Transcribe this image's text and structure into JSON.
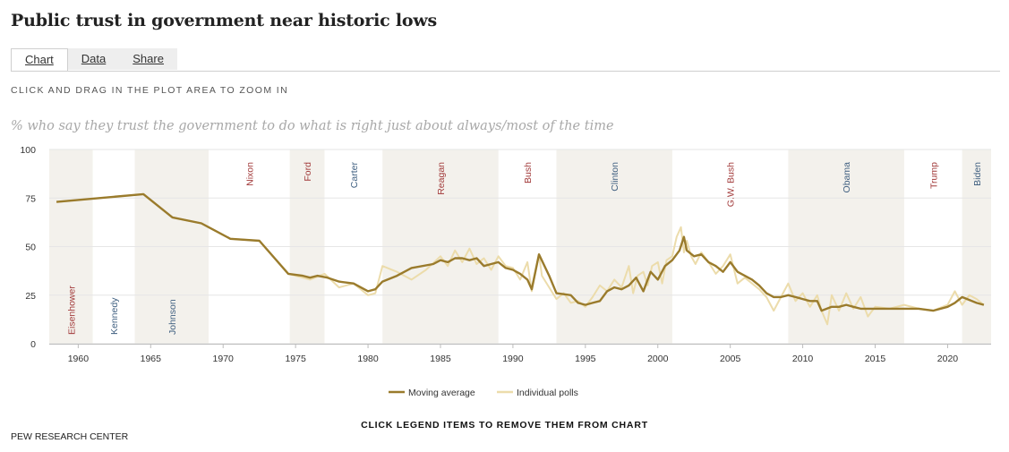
{
  "title": "Public trust in government near historic lows",
  "tabs": [
    "Chart",
    "Data",
    "Share"
  ],
  "zoom_hint": "CLICK AND DRAG IN THE PLOT AREA TO ZOOM IN",
  "legend_hint": "CLICK LEGEND ITEMS TO REMOVE THEM FROM CHART",
  "source": "PEW RESEARCH CENTER",
  "colors": {
    "moving_average": "#9a7b2c",
    "individual_polls": "#ecdcab",
    "republican": "#a23b3b",
    "democrat": "#3f5f80",
    "shade": "#f3f1ec"
  },
  "chart_data": {
    "type": "line",
    "title": "% who say they trust the government to do what is right just about always/most of the time",
    "xlabel": "",
    "ylabel": "",
    "xlim": [
      1958,
      2023
    ],
    "ylim": [
      0,
      100
    ],
    "yticks": [
      0,
      25,
      50,
      75,
      100
    ],
    "xticks": [
      1960,
      1965,
      1970,
      1975,
      1980,
      1985,
      1990,
      1995,
      2000,
      2005,
      2010,
      2015,
      2020
    ],
    "presidents": [
      {
        "name": "Eisenhower",
        "start": 1958,
        "end": 1961,
        "party": "R",
        "label_pos": "bottom"
      },
      {
        "name": "Kennedy",
        "start": 1961,
        "end": 1963.9,
        "party": "D",
        "label_pos": "bottom"
      },
      {
        "name": "Johnson",
        "start": 1963.9,
        "end": 1969,
        "party": "D",
        "label_pos": "bottom"
      },
      {
        "name": "Nixon",
        "start": 1969,
        "end": 1974.6,
        "party": "R",
        "label_pos": "top"
      },
      {
        "name": "Ford",
        "start": 1974.6,
        "end": 1977,
        "party": "R",
        "label_pos": "top"
      },
      {
        "name": "Carter",
        "start": 1977,
        "end": 1981,
        "party": "D",
        "label_pos": "top"
      },
      {
        "name": "Reagan",
        "start": 1981,
        "end": 1989,
        "party": "R",
        "label_pos": "top"
      },
      {
        "name": "Bush",
        "start": 1989,
        "end": 1993,
        "party": "R",
        "label_pos": "top"
      },
      {
        "name": "Clinton",
        "start": 1993,
        "end": 2001,
        "party": "D",
        "label_pos": "top"
      },
      {
        "name": "G.W. Bush",
        "start": 2001,
        "end": 2009,
        "party": "R",
        "label_pos": "top"
      },
      {
        "name": "Obama",
        "start": 2009,
        "end": 2017,
        "party": "D",
        "label_pos": "top"
      },
      {
        "name": "Trump",
        "start": 2017,
        "end": 2021,
        "party": "R",
        "label_pos": "top"
      },
      {
        "name": "Biden",
        "start": 2021,
        "end": 2023,
        "party": "D",
        "label_pos": "top"
      }
    ],
    "series": [
      {
        "name": "Moving average",
        "x": [
          1958.5,
          1964.5,
          1966.5,
          1968.5,
          1970.5,
          1972.5,
          1974.5,
          1975.5,
          1976,
          1976.5,
          1977.2,
          1978,
          1979,
          1980,
          1980.5,
          1981,
          1982,
          1983,
          1984.5,
          1985,
          1985.5,
          1986,
          1986.5,
          1987,
          1987.5,
          1988,
          1988.5,
          1989,
          1989.5,
          1990,
          1990.5,
          1991,
          1991.3,
          1991.8,
          1992.5,
          1993,
          1994,
          1994.5,
          1995,
          1995.5,
          1996,
          1996.5,
          1997,
          1997.5,
          1998,
          1998.5,
          1999,
          1999.5,
          2000,
          2000.5,
          2001,
          2001.5,
          2001.8,
          2002,
          2002.5,
          2003,
          2003.5,
          2004,
          2004.5,
          2005,
          2005.5,
          2006,
          2006.5,
          2007,
          2007.5,
          2008,
          2008.5,
          2009,
          2009.5,
          2010,
          2010.5,
          2011,
          2011.3,
          2012,
          2012.5,
          2013,
          2013.5,
          2014,
          2015,
          2016,
          2017,
          2018,
          2019,
          2020,
          2020.5,
          2021,
          2022,
          2022.5
        ],
        "values": [
          73,
          77,
          65,
          62,
          54,
          53,
          36,
          35,
          34,
          35,
          34,
          32,
          31,
          27,
          28,
          32,
          35,
          39,
          41,
          43,
          42,
          44,
          44,
          43,
          44,
          40,
          41,
          42,
          39,
          38,
          36,
          33,
          28,
          46,
          35,
          26,
          25,
          21,
          20,
          21,
          22,
          27,
          29,
          28,
          30,
          34,
          27,
          37,
          33,
          40,
          43,
          48,
          55,
          48,
          45,
          46,
          42,
          40,
          37,
          42,
          37,
          35,
          33,
          30,
          26,
          24,
          24,
          25,
          24,
          23,
          22,
          22,
          17,
          19,
          19,
          20,
          19,
          18,
          18,
          18,
          18,
          18,
          17,
          19,
          21,
          24,
          21,
          20
        ]
      },
      {
        "name": "Individual polls",
        "x": [
          1958.5,
          1964.5,
          1966.5,
          1968.5,
          1970.5,
          1972.5,
          1974.5,
          1976,
          1977,
          1978,
          1979,
          1980,
          1980.5,
          1981,
          1982,
          1983,
          1984,
          1985,
          1985.5,
          1986,
          1986.5,
          1987,
          1987.5,
          1988,
          1988.5,
          1989,
          1989.5,
          1990,
          1990.5,
          1991,
          1991.3,
          1991.8,
          1992,
          1992.5,
          1993,
          1993.5,
          1994,
          1994.5,
          1995,
          1995.5,
          1996,
          1996.5,
          1997,
          1997.5,
          1998,
          1998.3,
          1998.6,
          1999,
          1999.3,
          1999.6,
          2000,
          2000.3,
          2000.6,
          2001,
          2001.3,
          2001.6,
          2001.8,
          2002,
          2002.3,
          2002.6,
          2003,
          2003.5,
          2004,
          2004.5,
          2005,
          2005.5,
          2006,
          2006.5,
          2007,
          2007.5,
          2008,
          2008.5,
          2009,
          2009.5,
          2010,
          2010.5,
          2011,
          2011.3,
          2011.7,
          2012,
          2012.5,
          2013,
          2013.5,
          2014,
          2014.5,
          2015,
          2016,
          2017,
          2018,
          2019,
          2020,
          2020.5,
          2021,
          2021.5,
          2022,
          2022.5
        ],
        "values": [
          73,
          77,
          65,
          62,
          54,
          53,
          36,
          33,
          36,
          29,
          31,
          25,
          26,
          40,
          37,
          33,
          38,
          45,
          40,
          48,
          42,
          49,
          41,
          44,
          38,
          45,
          40,
          39,
          33,
          42,
          27,
          46,
          35,
          29,
          23,
          26,
          21,
          22,
          19,
          24,
          30,
          27,
          33,
          29,
          40,
          26,
          35,
          37,
          30,
          40,
          42,
          31,
          43,
          45,
          55,
          60,
          47,
          53,
          45,
          41,
          47,
          42,
          36,
          40,
          46,
          31,
          34,
          31,
          28,
          24,
          17,
          24,
          31,
          22,
          26,
          19,
          25,
          17,
          10,
          25,
          17,
          26,
          18,
          24,
          14,
          19,
          18,
          20,
          18,
          17,
          20,
          27,
          20,
          25,
          23,
          20
        ]
      }
    ]
  }
}
